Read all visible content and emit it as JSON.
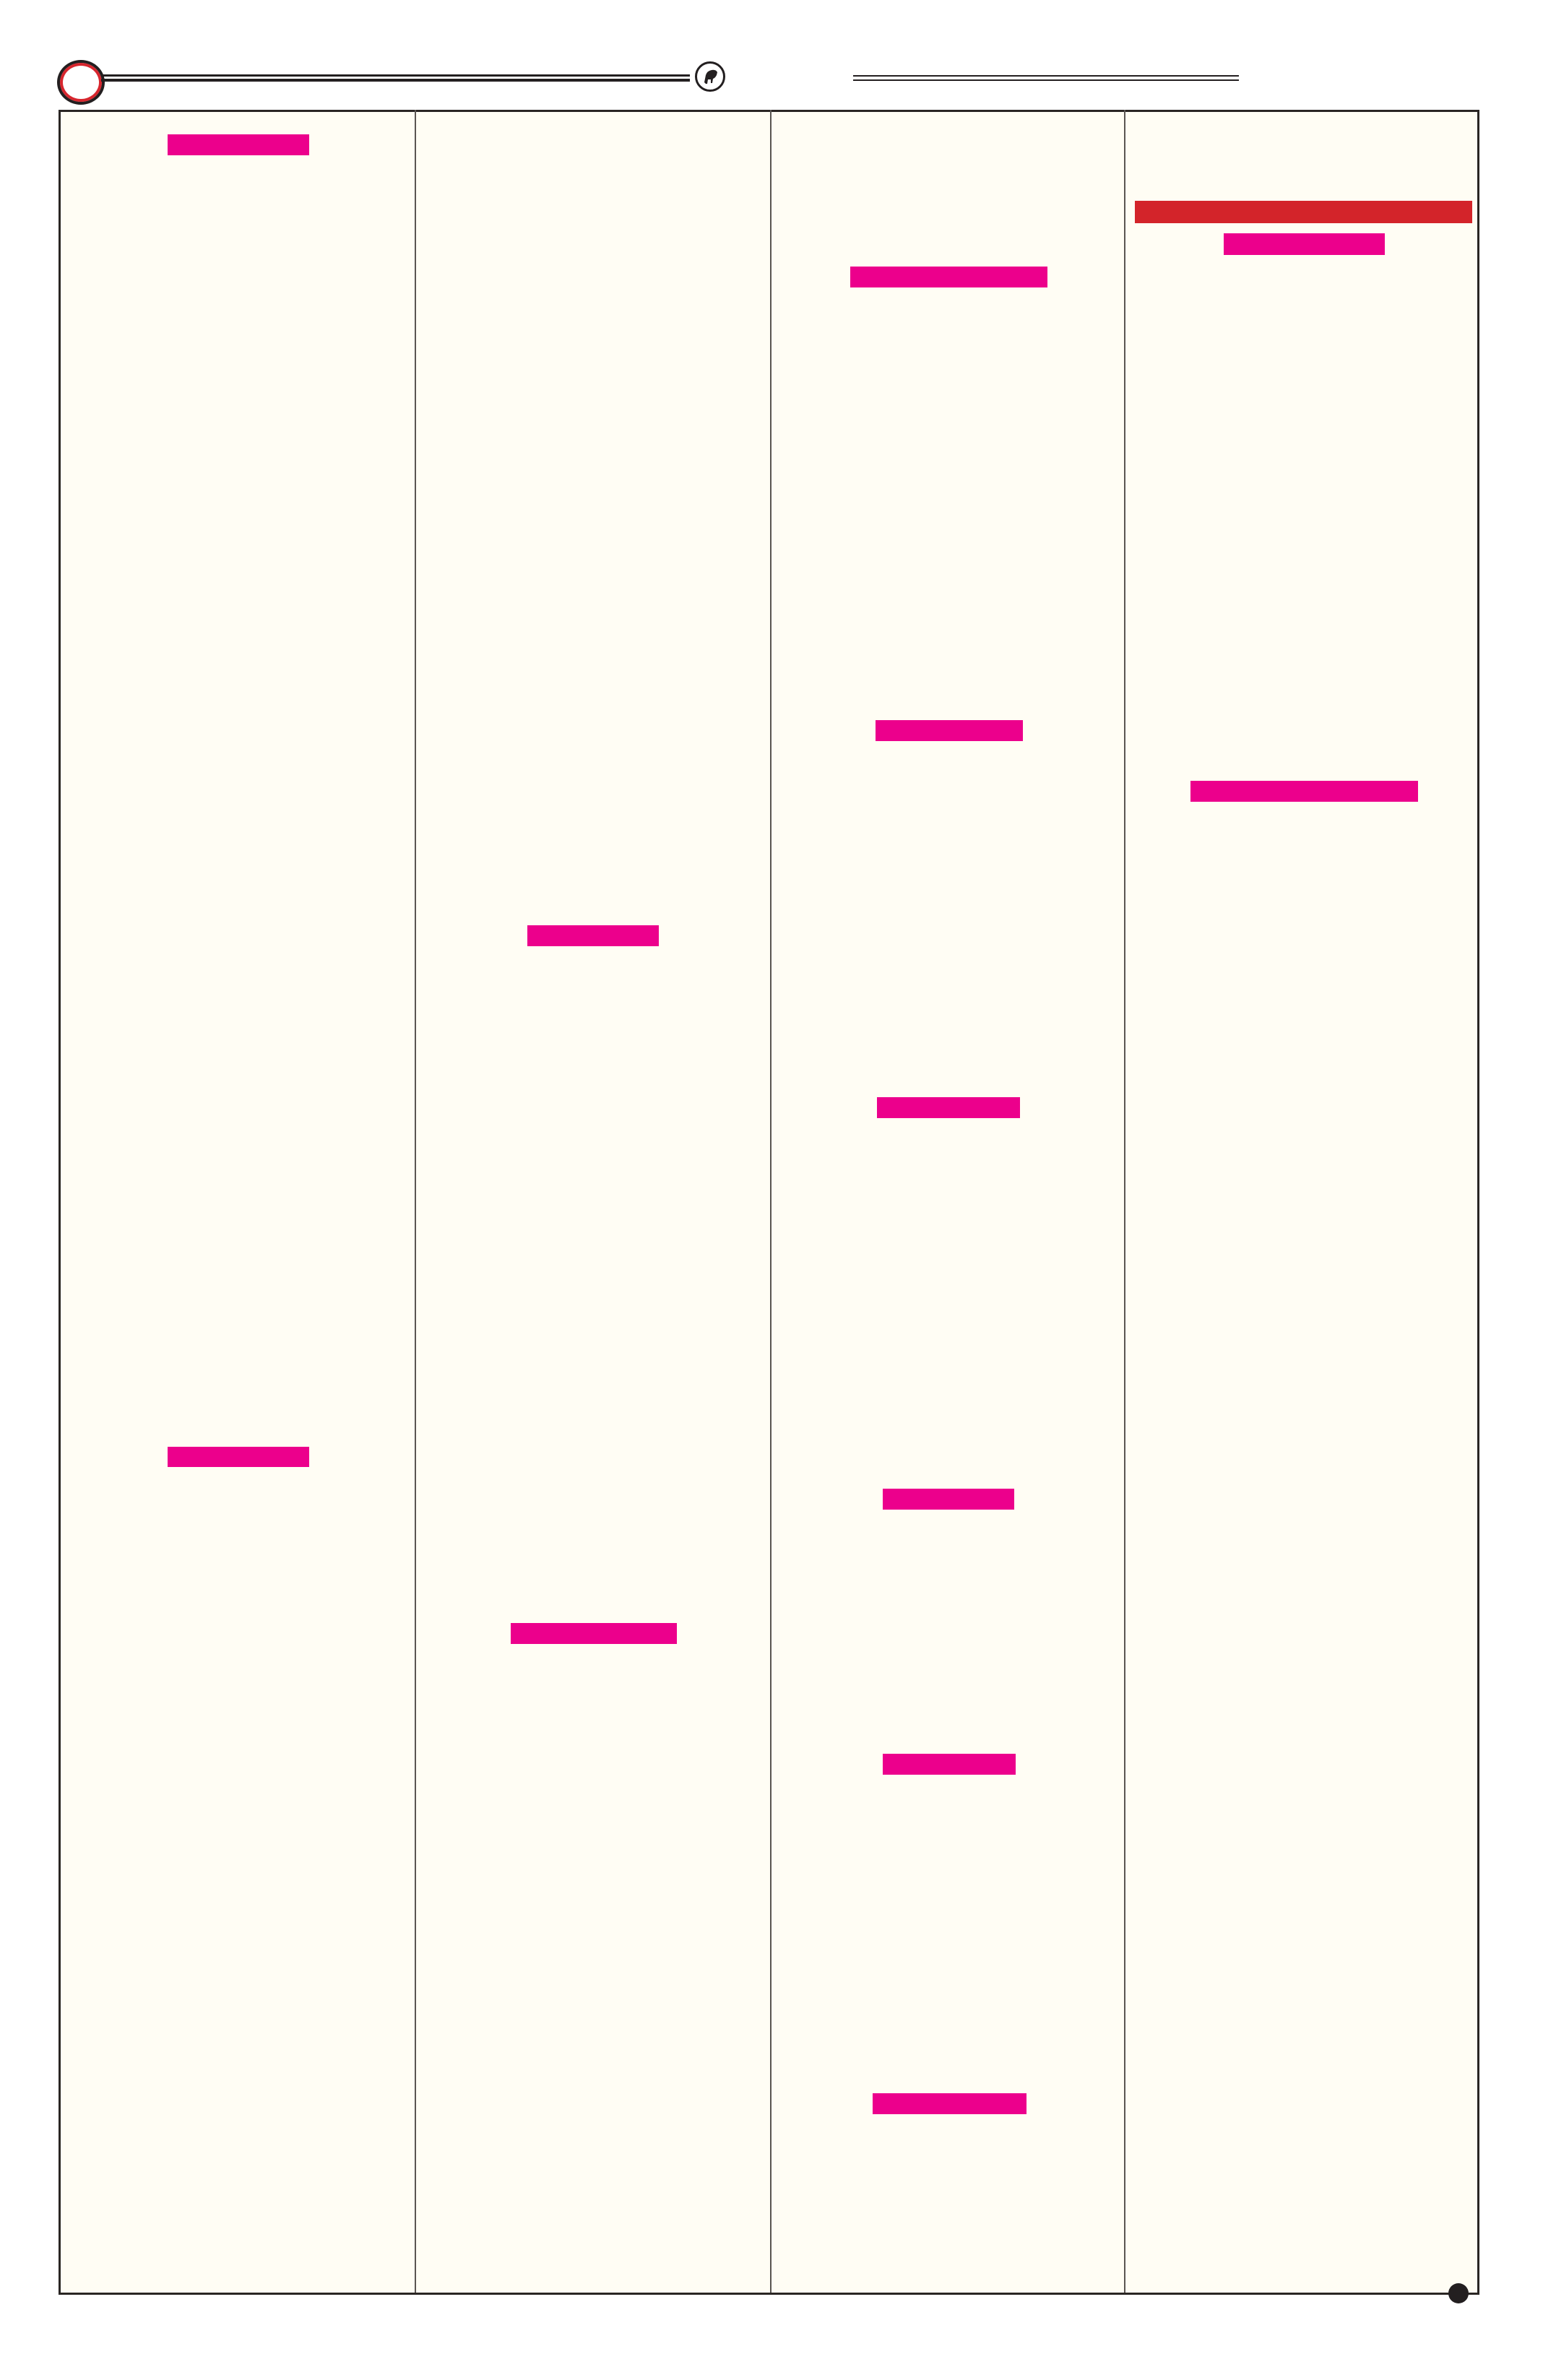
{
  "colors": {
    "page_background": "#fffdf4",
    "frame_border": "#2a2624",
    "heading_bar": "#ec008c",
    "banner_bar": "#d3242a",
    "ring_accent": "#d7262e",
    "ink": "#231f20"
  },
  "header": {
    "left_badge_icon": "ring-icon",
    "emblem_icon": "bull-icon"
  },
  "footer": {
    "corner_icon": "dot-icon"
  },
  "columns": [
    {
      "heading_bars": 2
    },
    {
      "heading_bars": 2
    },
    {
      "heading_bars": 6
    },
    {
      "banner_bars": 1,
      "heading_bars": 2
    }
  ]
}
